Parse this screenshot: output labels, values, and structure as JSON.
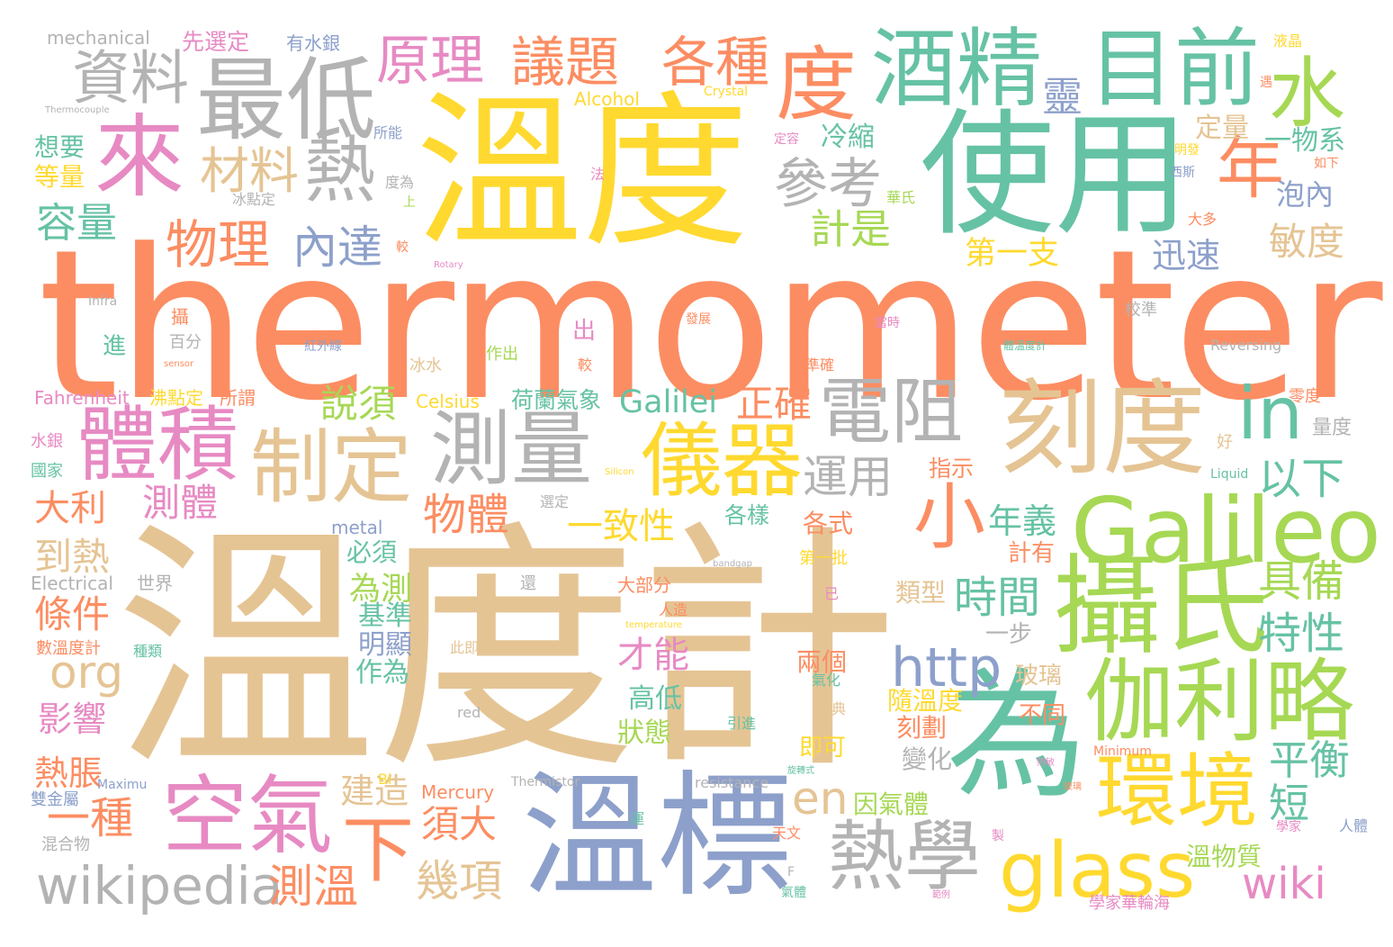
{
  "palette": {
    "orange": "#fc8d62",
    "tan": "#e5c494",
    "green": "#66c2a5",
    "yellow": "#ffd92f",
    "lime": "#a6d854",
    "blue": "#8da0cb",
    "pink": "#e78ac3",
    "gray": "#b3b3b3"
  },
  "words": [
    {
      "text": "thermometer",
      "color": "orange"
    },
    {
      "text": "溫度計",
      "color": "tan"
    },
    {
      "text": "溫度",
      "color": "yellow"
    },
    {
      "text": "使用",
      "color": "green"
    },
    {
      "text": "溫標",
      "color": "blue"
    },
    {
      "text": "為",
      "color": "green"
    },
    {
      "text": "攝氏",
      "color": "lime"
    },
    {
      "text": "Galileo",
      "color": "lime"
    },
    {
      "text": "刻度",
      "color": "tan"
    },
    {
      "text": "伽利略",
      "color": "lime"
    },
    {
      "text": "目前",
      "color": "green"
    },
    {
      "text": "酒精",
      "color": "green"
    },
    {
      "text": "最低",
      "color": "gray"
    },
    {
      "text": "來",
      "color": "pink"
    },
    {
      "text": "度",
      "color": "orange"
    },
    {
      "text": "水",
      "color": "lime"
    },
    {
      "text": "熱",
      "color": "gray"
    },
    {
      "text": "測量",
      "color": "gray"
    },
    {
      "text": "體積",
      "color": "pink"
    },
    {
      "text": "制定",
      "color": "tan"
    },
    {
      "text": "儀器",
      "color": "yellow"
    },
    {
      "text": "空氣",
      "color": "pink"
    },
    {
      "text": "熱學",
      "color": "gray"
    },
    {
      "text": "環境",
      "color": "yellow"
    },
    {
      "text": "glass",
      "color": "yellow"
    },
    {
      "text": "電阻",
      "color": "gray"
    },
    {
      "text": "in",
      "color": "green"
    },
    {
      "text": "小",
      "color": "orange"
    },
    {
      "text": "年",
      "color": "orange"
    },
    {
      "text": "資料",
      "color": "gray"
    },
    {
      "text": "議題",
      "color": "orange"
    },
    {
      "text": "各種",
      "color": "orange"
    },
    {
      "text": "原理",
      "color": "pink"
    },
    {
      "text": "參考",
      "color": "gray"
    },
    {
      "text": "材料",
      "color": "tan"
    },
    {
      "text": "物理",
      "color": "orange"
    },
    {
      "text": "內達",
      "color": "blue"
    },
    {
      "text": "容量",
      "color": "green"
    },
    {
      "text": "靈",
      "color": "blue"
    },
    {
      "text": "http",
      "color": "blue"
    },
    {
      "text": "wikipedia",
      "color": "gray"
    },
    {
      "text": "下",
      "color": "orange"
    },
    {
      "text": "測溫",
      "color": "orange"
    },
    {
      "text": "wiki",
      "color": "pink"
    },
    {
      "text": "org",
      "color": "tan"
    },
    {
      "text": "en",
      "color": "tan"
    },
    {
      "text": "一種",
      "color": "orange"
    },
    {
      "text": "運用",
      "color": "gray"
    },
    {
      "text": "物體",
      "color": "orange"
    },
    {
      "text": "以下",
      "color": "green"
    },
    {
      "text": "具備",
      "color": "lime"
    },
    {
      "text": "特性",
      "color": "green"
    },
    {
      "text": "時間",
      "color": "green"
    },
    {
      "text": "平衡",
      "color": "green"
    },
    {
      "text": "短",
      "color": "green"
    },
    {
      "text": "敏度",
      "color": "tan"
    },
    {
      "text": "計是",
      "color": "lime"
    },
    {
      "text": "說須",
      "color": "lime"
    },
    {
      "text": "正確",
      "color": "orange"
    },
    {
      "text": "Galilei",
      "color": "green"
    },
    {
      "text": "一致性",
      "color": "yellow"
    },
    {
      "text": "才能",
      "color": "pink"
    },
    {
      "text": "測體",
      "color": "pink"
    },
    {
      "text": "大利",
      "color": "orange"
    },
    {
      "text": "到熱",
      "color": "tan"
    },
    {
      "text": "條件",
      "color": "orange"
    },
    {
      "text": "影響",
      "color": "pink"
    },
    {
      "text": "熱脹",
      "color": "orange"
    },
    {
      "text": "須大",
      "color": "orange"
    },
    {
      "text": "幾項",
      "color": "tan"
    },
    {
      "text": "建造",
      "color": "tan"
    },
    {
      "text": "為測",
      "color": "lime"
    },
    {
      "text": "基準",
      "color": "green"
    },
    {
      "text": "作為",
      "color": "green"
    },
    {
      "text": "明顯",
      "color": "blue"
    },
    {
      "text": "年義",
      "color": "green"
    },
    {
      "text": "第一支",
      "color": "yellow"
    },
    {
      "text": "迅速",
      "color": "blue"
    },
    {
      "text": "泡內",
      "color": "blue"
    },
    {
      "text": "一物系",
      "color": "green"
    },
    {
      "text": "定量",
      "color": "tan"
    },
    {
      "text": "冷縮",
      "color": "green"
    },
    {
      "text": "想要",
      "color": "green"
    },
    {
      "text": "等量",
      "color": "yellow"
    },
    {
      "text": "先選定",
      "color": "pink"
    },
    {
      "text": "有水銀",
      "color": "blue"
    },
    {
      "text": "mechanical",
      "color": "gray"
    },
    {
      "text": "Alcohol",
      "color": "yellow"
    },
    {
      "text": "Crystal",
      "color": "yellow"
    },
    {
      "text": "液晶",
      "color": "yellow"
    },
    {
      "text": "Fahrenheit",
      "color": "pink"
    },
    {
      "text": "沸點定",
      "color": "yellow"
    },
    {
      "text": "所謂",
      "color": "orange"
    },
    {
      "text": "Celsius",
      "color": "yellow"
    },
    {
      "text": "荷蘭氣象",
      "color": "green"
    },
    {
      "text": "指示",
      "color": "orange"
    },
    {
      "text": "各樣",
      "color": "green"
    },
    {
      "text": "各式",
      "color": "orange"
    },
    {
      "text": "兩個",
      "color": "orange"
    },
    {
      "text": "高低",
      "color": "green"
    },
    {
      "text": "狀態",
      "color": "lime"
    },
    {
      "text": "隨溫度",
      "color": "yellow"
    },
    {
      "text": "刻劃",
      "color": "orange"
    },
    {
      "text": "即可",
      "color": "yellow"
    },
    {
      "text": "變化",
      "color": "gray"
    },
    {
      "text": "因氣體",
      "color": "lime"
    },
    {
      "text": "玻璃",
      "color": "tan"
    },
    {
      "text": "不同",
      "color": "orange"
    },
    {
      "text": "溫物質",
      "color": "lime"
    },
    {
      "text": "一步",
      "color": "gray"
    },
    {
      "text": "計有",
      "color": "orange"
    },
    {
      "text": "類型",
      "color": "tan"
    },
    {
      "text": "Mercury",
      "color": "orange"
    },
    {
      "text": "metal",
      "color": "blue"
    },
    {
      "text": "Electrical",
      "color": "gray"
    },
    {
      "text": "世界",
      "color": "gray"
    },
    {
      "text": "必須",
      "color": "green"
    },
    {
      "text": "數溫度計",
      "color": "orange"
    },
    {
      "text": "種類",
      "color": "green"
    },
    {
      "text": "水銀",
      "color": "pink"
    },
    {
      "text": "國家",
      "color": "green"
    },
    {
      "text": "混合物",
      "color": "gray"
    },
    {
      "text": "雙金屬",
      "color": "blue"
    },
    {
      "text": "Maximu",
      "color": "blue"
    },
    {
      "text": "Bi",
      "color": "yellow"
    },
    {
      "text": "red",
      "color": "gray"
    },
    {
      "text": "resistance",
      "color": "gray"
    },
    {
      "text": "Thermistor",
      "color": "gray"
    },
    {
      "text": "第一批",
      "color": "yellow"
    },
    {
      "text": "大部分",
      "color": "orange"
    },
    {
      "text": "人造",
      "color": "orange"
    },
    {
      "text": "此即",
      "color": "tan"
    },
    {
      "text": "氣化",
      "color": "green"
    },
    {
      "text": "瑞典",
      "color": "tan"
    },
    {
      "text": "引進",
      "color": "green"
    },
    {
      "text": "天文",
      "color": "orange"
    },
    {
      "text": "學家華輪海",
      "color": "pink"
    },
    {
      "text": "氣體",
      "color": "green"
    },
    {
      "text": "人體",
      "color": "blue"
    },
    {
      "text": "學家",
      "color": "pink"
    },
    {
      "text": "零度",
      "color": "orange"
    },
    {
      "text": "量度",
      "color": "gray"
    },
    {
      "text": "好",
      "color": "tan"
    },
    {
      "text": "Liquid",
      "color": "green"
    },
    {
      "text": "Minimum",
      "color": "orange"
    },
    {
      "text": "Reversing",
      "color": "gray"
    },
    {
      "text": "校準",
      "color": "gray"
    },
    {
      "text": "體溫度計",
      "color": "green"
    },
    {
      "text": "當時",
      "color": "pink"
    },
    {
      "text": "發展",
      "color": "orange"
    },
    {
      "text": "紅外線",
      "color": "blue"
    },
    {
      "text": "百分",
      "color": "gray"
    },
    {
      "text": "冰水",
      "color": "tan"
    },
    {
      "text": "作出",
      "color": "lime"
    },
    {
      "text": "出",
      "color": "pink"
    },
    {
      "text": "較",
      "color": "orange"
    },
    {
      "text": "準確",
      "color": "orange"
    },
    {
      "text": "進",
      "color": "green"
    },
    {
      "text": "攝",
      "color": "orange"
    },
    {
      "text": "Infra",
      "color": "gray"
    },
    {
      "text": "sensor",
      "color": "orange"
    },
    {
      "text": "Rotary",
      "color": "pink"
    },
    {
      "text": "Thermocouple",
      "color": "gray"
    },
    {
      "text": "冰點定",
      "color": "gray"
    },
    {
      "text": "華氏",
      "color": "lime"
    },
    {
      "text": "度為",
      "color": "gray"
    },
    {
      "text": "所能",
      "color": "blue"
    },
    {
      "text": "定容",
      "color": "pink"
    },
    {
      "text": "法",
      "color": "pink"
    },
    {
      "text": "上",
      "color": "lime"
    },
    {
      "text": "較",
      "color": "orange"
    },
    {
      "text": "西斯",
      "color": "blue"
    },
    {
      "text": "大多",
      "color": "orange"
    },
    {
      "text": "如下",
      "color": "orange"
    },
    {
      "text": "遇",
      "color": "orange"
    },
    {
      "text": "明發",
      "color": "yellow"
    },
    {
      "text": "已",
      "color": "pink"
    },
    {
      "text": "還",
      "color": "gray"
    },
    {
      "text": "選定",
      "color": "gray"
    },
    {
      "text": "Silicon",
      "color": "yellow"
    },
    {
      "text": "bandgap",
      "color": "gray"
    },
    {
      "text": "temperature",
      "color": "yellow"
    },
    {
      "text": "F",
      "color": "gray"
    },
    {
      "text": "製",
      "color": "pink"
    },
    {
      "text": "運",
      "color": "green"
    },
    {
      "text": "範例",
      "color": "pink"
    },
    {
      "text": "旋轉式",
      "color": "green"
    },
    {
      "text": "玻璃",
      "color": "orange"
    },
    {
      "text": "熱敏",
      "color": "pink"
    }
  ]
}
